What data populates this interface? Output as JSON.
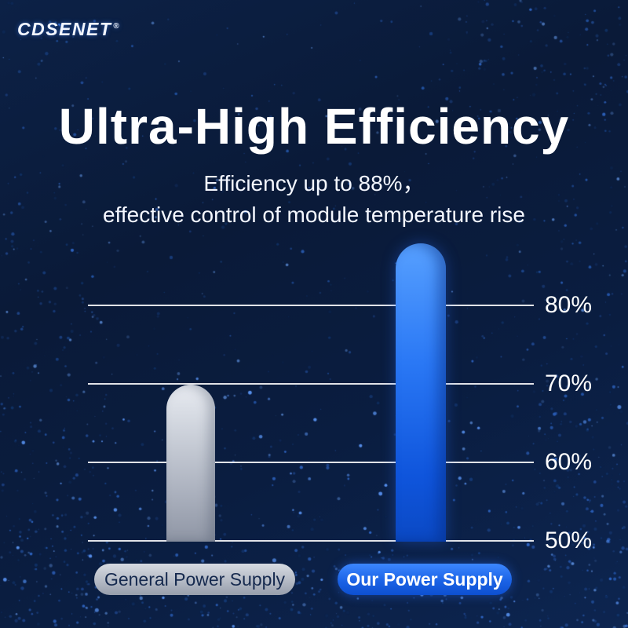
{
  "brand": {
    "name": "CDSENET",
    "registered": "®"
  },
  "header": {
    "title": "Ultra-High Efficiency",
    "subtitle_line1": "Efficiency up to 88%，",
    "subtitle_line2": "effective control of module temperature rise"
  },
  "chart_data": {
    "type": "bar",
    "title": "Ultra-High Efficiency",
    "categories": [
      "General Power Supply",
      "Our Power Supply"
    ],
    "values": [
      70,
      88
    ],
    "unit": "%",
    "ylim": [
      50,
      90
    ],
    "yticks": [
      50,
      60,
      70,
      80
    ],
    "ytick_labels": [
      "50%",
      "60%",
      "70%",
      "80%"
    ],
    "bar_colors": [
      "#b9bfca",
      "#1b63e6"
    ],
    "grid": true,
    "legend_position": "bottom"
  },
  "colors": {
    "background": "#0a1c3c",
    "accent_blue": "#1b63e6",
    "bar_gray": "#b9bfca",
    "gridline": "#ffffff"
  }
}
